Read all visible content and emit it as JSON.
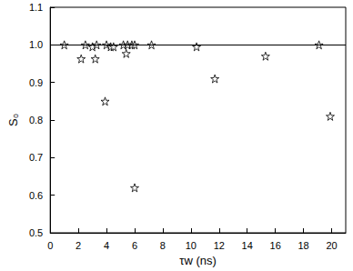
{
  "chart_data": {
    "type": "scatter",
    "x_label": "τw (ns)",
    "y_label": "S₀",
    "x": [
      1.0,
      2.2,
      2.5,
      3.0,
      3.2,
      3.3,
      3.9,
      4.0,
      4.3,
      4.5,
      5.2,
      5.4,
      5.5,
      5.8,
      6.0,
      6.0,
      7.2,
      10.4,
      11.7,
      15.3,
      19.1,
      19.9
    ],
    "values": [
      1.0,
      0.963,
      1.0,
      0.995,
      0.963,
      1.0,
      0.85,
      1.0,
      0.995,
      0.995,
      1.0,
      0.977,
      1.0,
      1.0,
      0.62,
      1.0,
      1.0,
      0.995,
      0.91,
      0.97,
      1.0,
      0.81
    ],
    "color": "#000000",
    "marker": "star",
    "reference_line": 1.0,
    "xlim": [
      0,
      21
    ],
    "xticks": [
      0,
      2,
      4,
      6,
      8,
      10,
      12,
      14,
      16,
      18,
      20
    ],
    "ylim": [
      0.5,
      1.1
    ],
    "yticks": [
      0.5,
      0.6,
      0.7,
      0.8,
      0.9,
      {
        "value": 1.0,
        "label": "1.0"
      },
      {
        "value": 1.1,
        "label": "1.1"
      }
    ],
    "grid": false
  }
}
